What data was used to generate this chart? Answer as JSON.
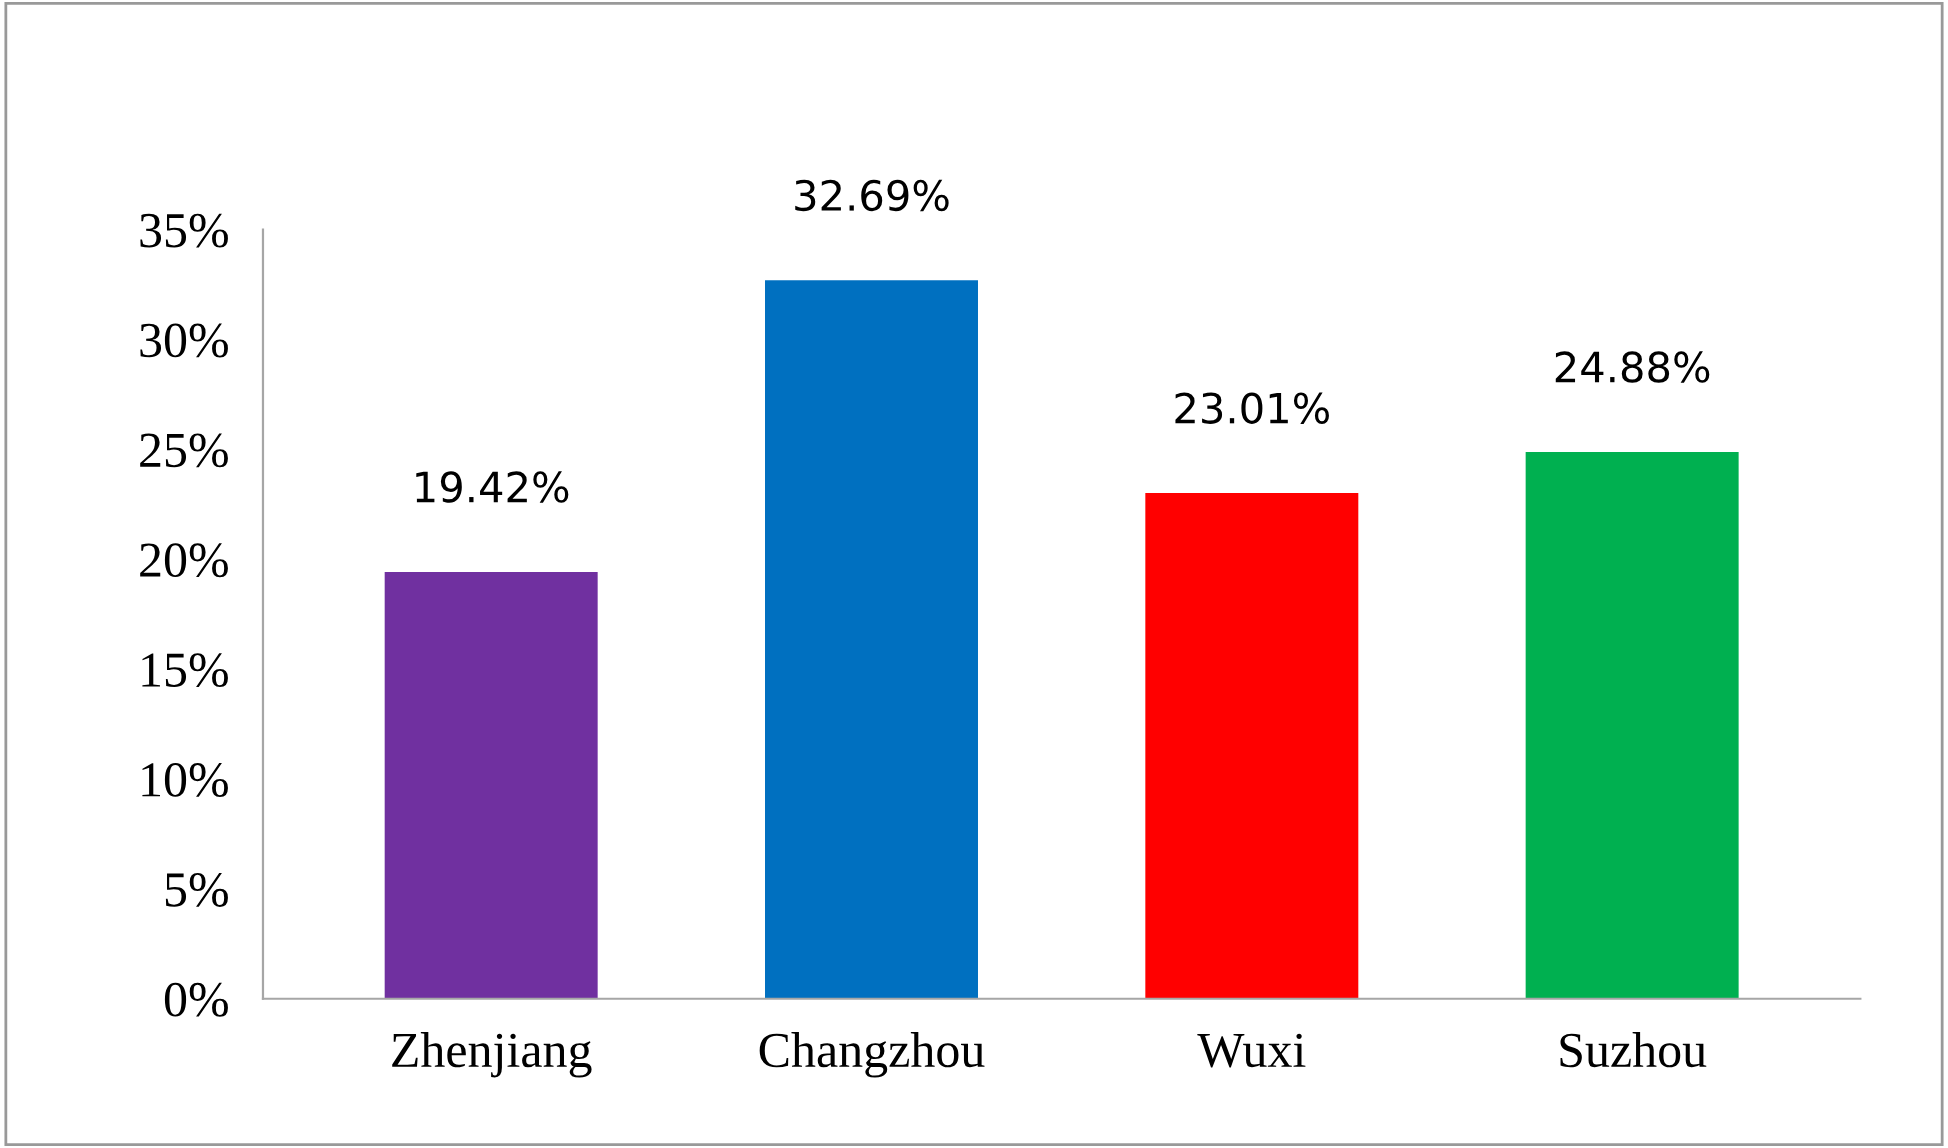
{
  "chart_data": {
    "type": "bar",
    "categories": [
      "Zhenjiang",
      "Changzhou",
      "Wuxi",
      "Suzhou"
    ],
    "values": [
      19.42,
      32.69,
      23.01,
      24.88
    ],
    "colors": [
      "#7030a0",
      "#0070c0",
      "#ff0000",
      "#00b050"
    ],
    "value_labels": [
      "19.42%",
      "32.69%",
      "23.01%",
      "24.88%"
    ],
    "ylim": [
      0,
      35
    ],
    "yticks": [
      {
        "value": 0,
        "label": "0%"
      },
      {
        "value": 5,
        "label": "5%"
      },
      {
        "value": 10,
        "label": "10%"
      },
      {
        "value": 15,
        "label": "15%"
      },
      {
        "value": 20,
        "label": "20%"
      },
      {
        "value": 25,
        "label": "25%"
      },
      {
        "value": 30,
        "label": "30%"
      },
      {
        "value": 35,
        "label": "35%"
      }
    ],
    "grid": false,
    "legend": false
  }
}
